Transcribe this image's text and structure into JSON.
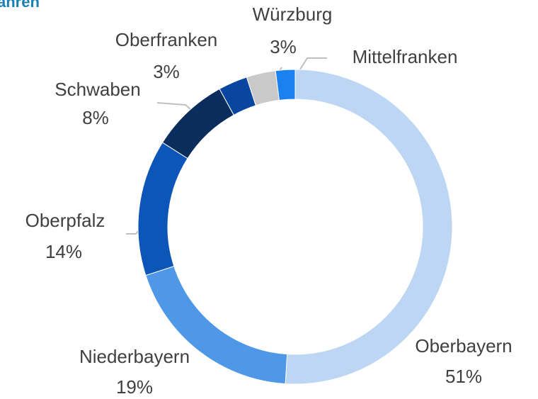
{
  "chart_data": {
    "type": "donut",
    "title": "ahren",
    "categories": [
      "Oberbayern",
      "Niederbayern",
      "Oberpfalz",
      "Schwaben",
      "Oberfranken",
      "Würzburg",
      "Mittelfranken"
    ],
    "values": [
      51,
      19,
      14,
      8,
      3,
      3,
      2
    ],
    "value_labels": [
      "51%",
      "19%",
      "14%",
      "8%",
      "3%",
      "3%",
      null
    ],
    "colors": [
      "#bcd6f3",
      "#4f98e8",
      "#0b56b8",
      "#0a2d5e",
      "#0846a2",
      "#c9c9c9",
      "#1b80f0"
    ]
  }
}
